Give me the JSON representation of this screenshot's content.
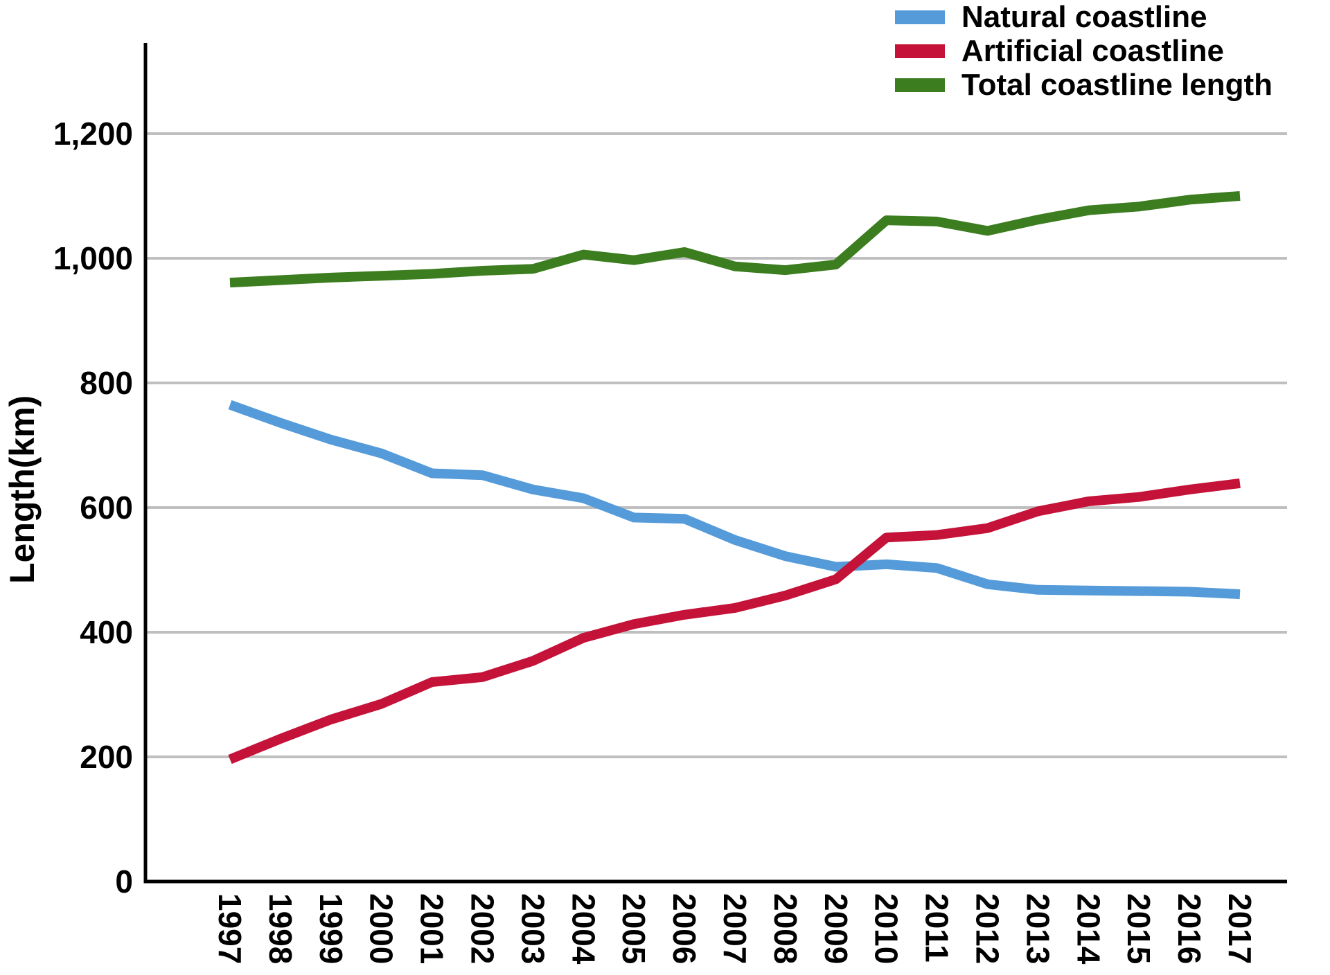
{
  "colors": {
    "natural": "#559BD9",
    "artificial": "#C51238",
    "total": "#3B7D1F",
    "grid": "#BFBFBF",
    "axis": "#000000",
    "background": "#FFFFFF"
  },
  "legend": {
    "position": "top-right",
    "items": [
      "Natural coastline",
      "Artificial coastline",
      "Total coastline length"
    ]
  },
  "chart_data": {
    "type": "line",
    "title": "",
    "xlabel": "",
    "ylabel": "Length(km)",
    "grid": "horizontal",
    "legend_position": "top-right",
    "ylim": [
      0,
      1340
    ],
    "y_tick_values": [
      0,
      200,
      400,
      600,
      800,
      1000,
      1200
    ],
    "y_tick_labels": [
      "0",
      "200",
      "400",
      "600",
      "800",
      "1,000",
      "1,200"
    ],
    "categories": [
      "1997",
      "1998",
      "1999",
      "2000",
      "2001",
      "2002",
      "2003",
      "2004",
      "2005",
      "2006",
      "2007",
      "2008",
      "2009",
      "2010",
      "2011",
      "2012",
      "2013",
      "2014",
      "2015",
      "2016",
      "2017"
    ],
    "series": [
      {
        "name": "Natural coastline",
        "color": "#559BD9",
        "values": [
          765,
          736,
          709,
          687,
          655,
          652,
          629,
          615,
          584,
          582,
          548,
          522,
          505,
          509,
          503,
          477,
          468,
          467,
          466,
          465,
          461
        ]
      },
      {
        "name": "Artificial coastline",
        "color": "#C51238",
        "values": [
          196,
          229,
          260,
          285,
          320,
          328,
          354,
          391,
          413,
          428,
          439,
          459,
          485,
          552,
          556,
          567,
          594,
          610,
          617,
          629,
          639
        ]
      },
      {
        "name": "Total coastline length",
        "color": "#3B7D1F",
        "values": [
          961,
          965,
          969,
          972,
          975,
          980,
          983,
          1006,
          997,
          1010,
          987,
          981,
          990,
          1061,
          1059,
          1044,
          1062,
          1077,
          1083,
          1094,
          1100
        ]
      }
    ]
  }
}
